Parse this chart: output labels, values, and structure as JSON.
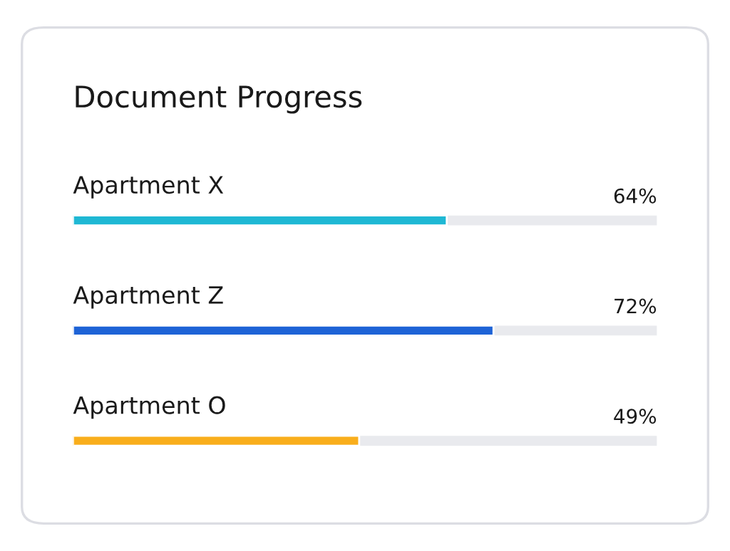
{
  "chart_data": {
    "type": "bar",
    "orientation": "horizontal",
    "title": "Document Progress",
    "categories": [
      "Apartment X",
      "Apartment Z",
      "Apartment O"
    ],
    "values": [
      64,
      72,
      49
    ],
    "colors": [
      "#1fb8d4",
      "#1e63d6",
      "#f9ae1c"
    ],
    "value_labels": [
      "64%",
      "72%",
      "49%"
    ],
    "xlim": [
      0,
      100
    ],
    "tick_labels": false
  }
}
